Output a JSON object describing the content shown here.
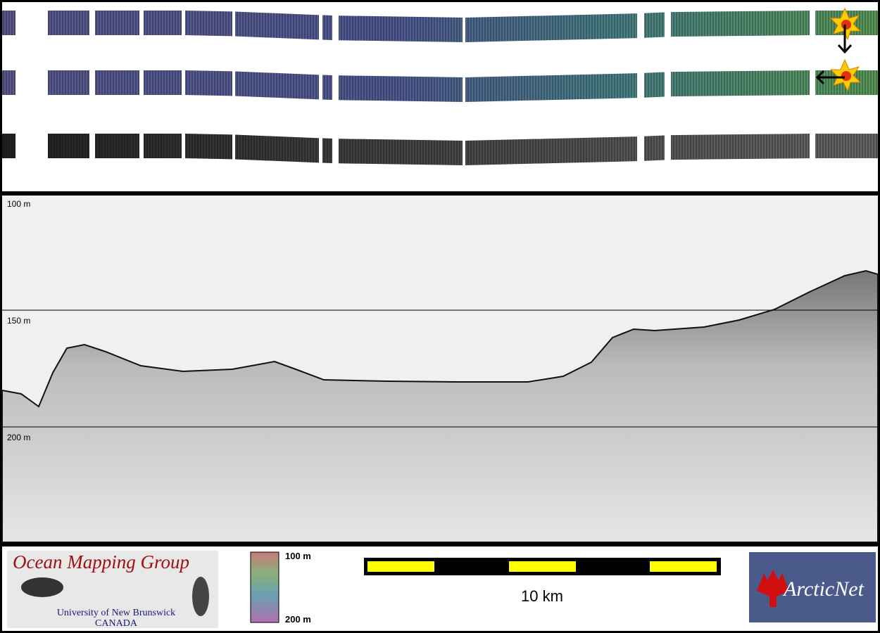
{
  "profile": {
    "depth_labels": [
      "100 m",
      "150 m",
      "200 m"
    ]
  },
  "footer": {
    "group_title": "Ocean Mapping Group",
    "university": "University of New Brunswick",
    "country": "CANADA",
    "colorbar_top": "100 m",
    "colorbar_bottom": "200 m",
    "scale_label": "10 km",
    "partner": "ArcticNet"
  }
}
